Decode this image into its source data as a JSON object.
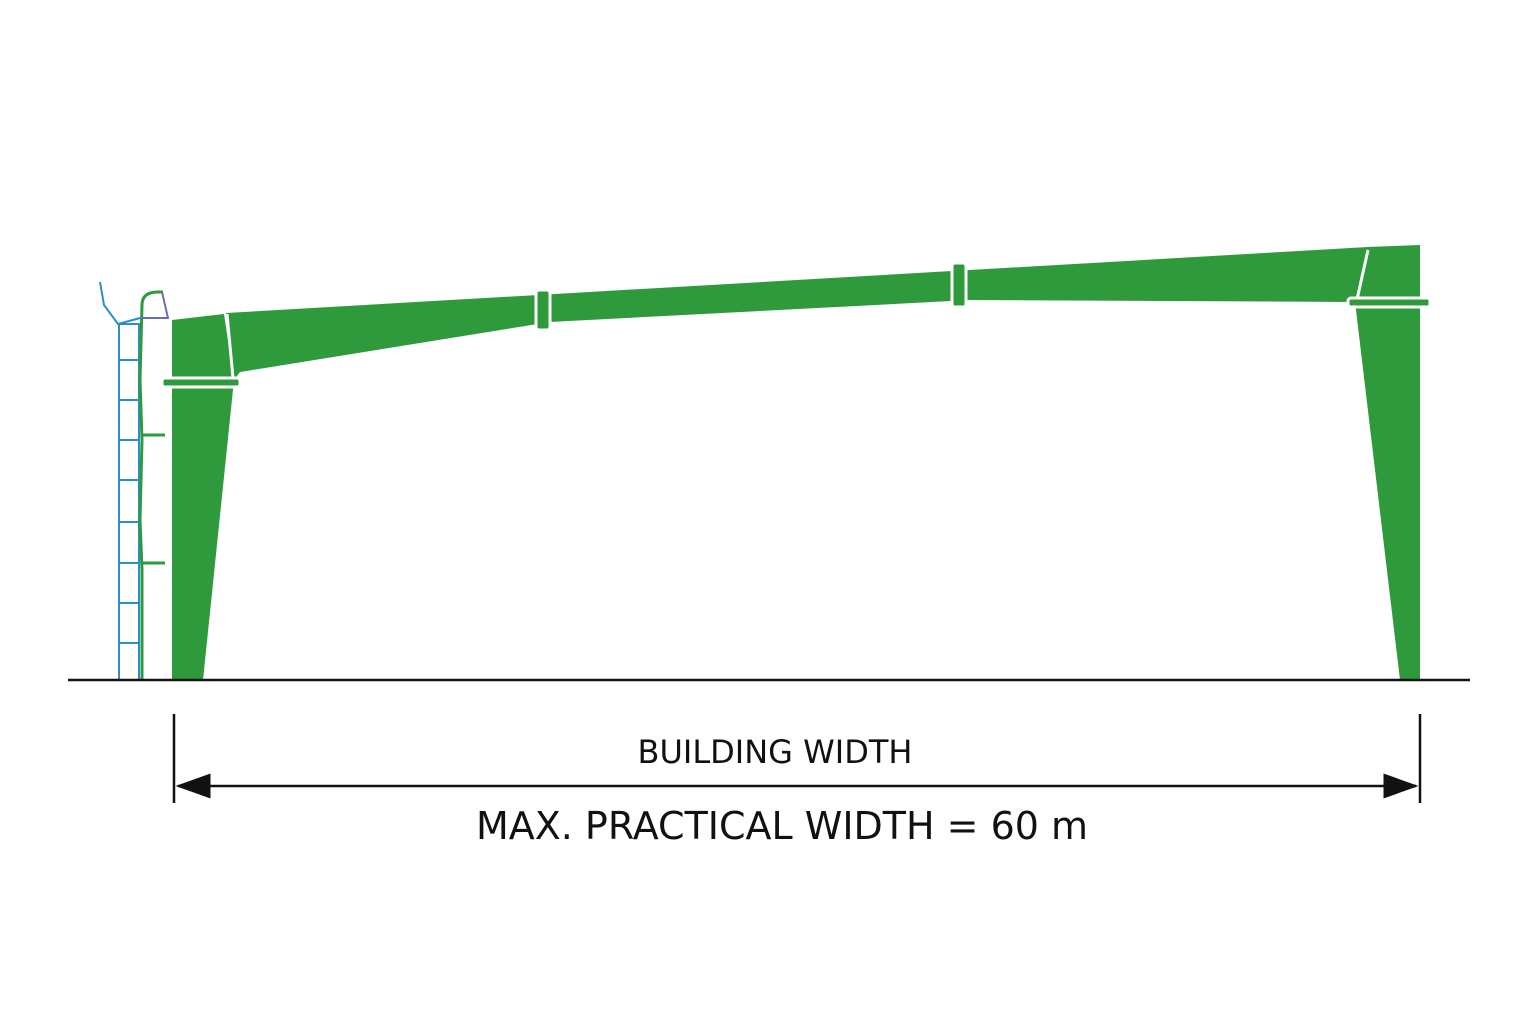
{
  "dimension": {
    "label": "BUILDING WIDTH",
    "note": "MAX. PRACTICAL WIDTH = 60 m"
  }
}
